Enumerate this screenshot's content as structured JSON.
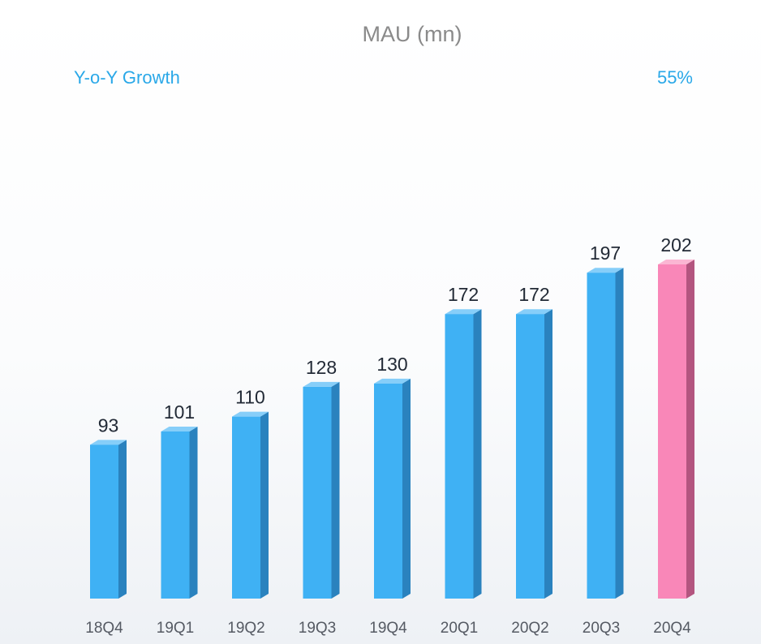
{
  "chart_data": {
    "type": "bar",
    "title": "MAU (mn)",
    "growth_label": "Y-o-Y Growth",
    "growth_value": "55%",
    "categories": [
      "18Q4",
      "19Q1",
      "19Q2",
      "19Q3",
      "19Q4",
      "20Q1",
      "20Q2",
      "20Q3",
      "20Q4"
    ],
    "values": [
      93,
      101,
      110,
      128,
      130,
      172,
      172,
      197,
      202
    ],
    "highlight_index": 8,
    "ylim": [
      0,
      202
    ],
    "colors": {
      "bar_front": "#3fb1f4",
      "bar_side": "#2a82be",
      "bar_top": "#86cef9",
      "highlight_front": "#f987b8",
      "highlight_side": "#b3557f",
      "highlight_top": "#fbb6d3",
      "growth_text": "#2aa8e8",
      "title_text": "#8a8a8a"
    }
  }
}
